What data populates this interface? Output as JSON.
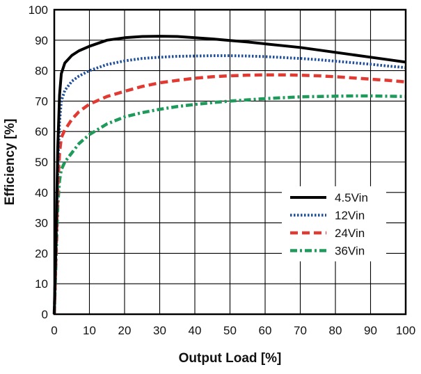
{
  "chart_data": {
    "type": "line",
    "title": "",
    "xlabel": "Output Load [%]",
    "ylabel": "Efficiency [%]",
    "xlim": [
      0,
      100
    ],
    "ylim": [
      0,
      100
    ],
    "x_ticks": [
      0,
      10,
      20,
      30,
      40,
      50,
      60,
      70,
      80,
      90,
      100
    ],
    "y_ticks": [
      0,
      10,
      20,
      30,
      40,
      50,
      60,
      70,
      80,
      90,
      100
    ],
    "grid": true,
    "legend_position": "lower-right",
    "series": [
      {
        "name": "4.5Vin",
        "color": "#000000",
        "dash": "solid",
        "points": [
          [
            0,
            0
          ],
          [
            0.5,
            25
          ],
          [
            1,
            55
          ],
          [
            1.5,
            72
          ],
          [
            2,
            79
          ],
          [
            3,
            82.5
          ],
          [
            5,
            85
          ],
          [
            7,
            86.5
          ],
          [
            10,
            88
          ],
          [
            15,
            90
          ],
          [
            20,
            90.8
          ],
          [
            25,
            91.2
          ],
          [
            30,
            91.3
          ],
          [
            35,
            91.2
          ],
          [
            40,
            90.8
          ],
          [
            45,
            90.4
          ],
          [
            50,
            89.9
          ],
          [
            55,
            89.4
          ],
          [
            60,
            88.8
          ],
          [
            65,
            88.2
          ],
          [
            70,
            87.6
          ],
          [
            75,
            86.8
          ],
          [
            80,
            86
          ],
          [
            85,
            85.2
          ],
          [
            90,
            84.4
          ],
          [
            95,
            83.6
          ],
          [
            100,
            82.8
          ]
        ]
      },
      {
        "name": "12Vin",
        "color": "#1f4f9a",
        "dash": "dotted",
        "points": [
          [
            0,
            0
          ],
          [
            0.5,
            22
          ],
          [
            1,
            48
          ],
          [
            1.5,
            63
          ],
          [
            2,
            70
          ],
          [
            3,
            73.5
          ],
          [
            5,
            76.5
          ],
          [
            7,
            78.2
          ],
          [
            10,
            80
          ],
          [
            15,
            82
          ],
          [
            20,
            83.2
          ],
          [
            25,
            84
          ],
          [
            30,
            84.4
          ],
          [
            35,
            84.7
          ],
          [
            40,
            84.8
          ],
          [
            45,
            84.9
          ],
          [
            50,
            84.9
          ],
          [
            55,
            84.8
          ],
          [
            60,
            84.6
          ],
          [
            65,
            84.3
          ],
          [
            70,
            84
          ],
          [
            75,
            83.6
          ],
          [
            80,
            83.1
          ],
          [
            85,
            82.6
          ],
          [
            90,
            82.1
          ],
          [
            95,
            81.5
          ],
          [
            100,
            81
          ]
        ]
      },
      {
        "name": "24Vin",
        "color": "#e03a32",
        "dash": "dashed",
        "points": [
          [
            0,
            0
          ],
          [
            0.5,
            20
          ],
          [
            1,
            42
          ],
          [
            1.5,
            53
          ],
          [
            2,
            58
          ],
          [
            3,
            60.5
          ],
          [
            5,
            64
          ],
          [
            7,
            66.5
          ],
          [
            10,
            69
          ],
          [
            15,
            71.5
          ],
          [
            20,
            73.2
          ],
          [
            25,
            74.8
          ],
          [
            30,
            76
          ],
          [
            35,
            76.8
          ],
          [
            40,
            77.5
          ],
          [
            45,
            78
          ],
          [
            50,
            78.3
          ],
          [
            55,
            78.5
          ],
          [
            60,
            78.6
          ],
          [
            65,
            78.6
          ],
          [
            70,
            78.5
          ],
          [
            75,
            78.3
          ],
          [
            80,
            78
          ],
          [
            85,
            77.6
          ],
          [
            90,
            77.2
          ],
          [
            95,
            76.8
          ],
          [
            100,
            76.3
          ]
        ]
      },
      {
        "name": "36Vin",
        "color": "#1e9a5a",
        "dash": "dashdot",
        "points": [
          [
            0,
            0
          ],
          [
            0.5,
            18
          ],
          [
            1,
            36
          ],
          [
            1.5,
            44
          ],
          [
            2,
            47.5
          ],
          [
            3,
            50
          ],
          [
            5,
            53
          ],
          [
            7,
            56
          ],
          [
            10,
            59
          ],
          [
            15,
            62.5
          ],
          [
            20,
            64.8
          ],
          [
            25,
            66.2
          ],
          [
            30,
            67.3
          ],
          [
            35,
            68.2
          ],
          [
            40,
            68.9
          ],
          [
            45,
            69.5
          ],
          [
            50,
            70
          ],
          [
            55,
            70.4
          ],
          [
            60,
            70.8
          ],
          [
            65,
            71.1
          ],
          [
            70,
            71.4
          ],
          [
            75,
            71.5
          ],
          [
            80,
            71.6
          ],
          [
            85,
            71.7
          ],
          [
            90,
            71.7
          ],
          [
            95,
            71.6
          ],
          [
            100,
            71.5
          ]
        ]
      }
    ]
  }
}
